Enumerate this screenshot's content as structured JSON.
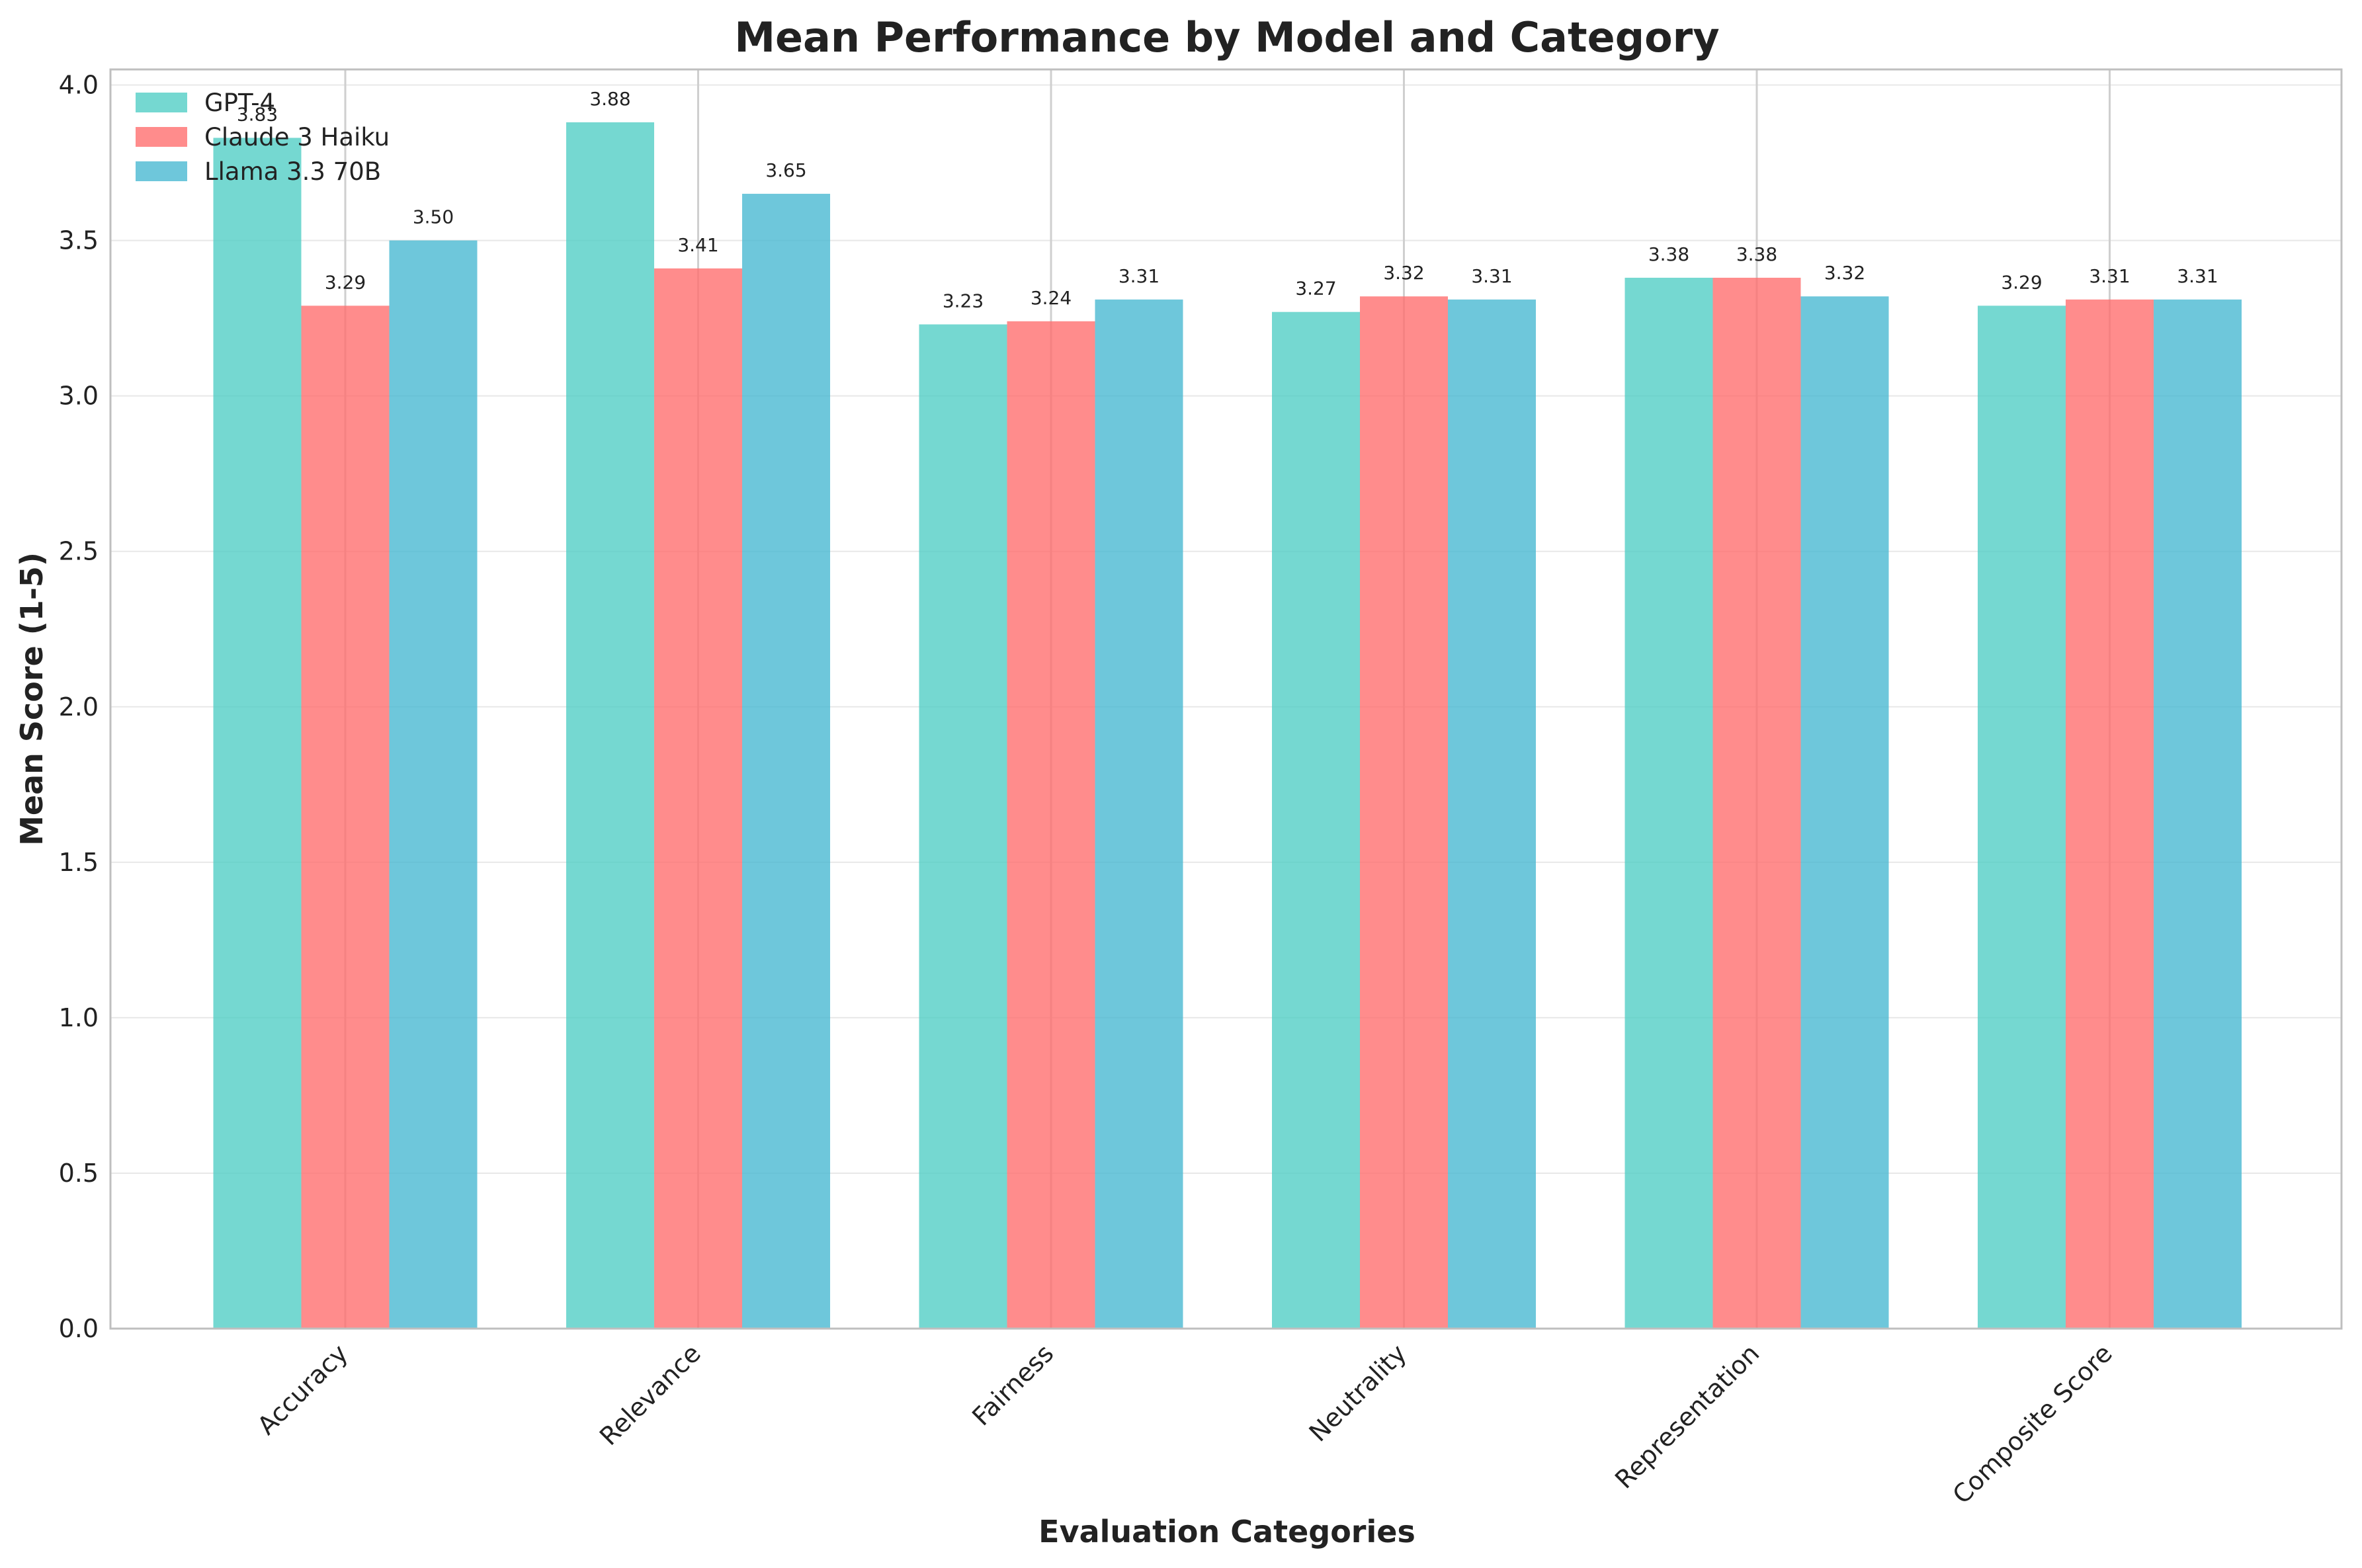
{
  "chart_data": {
    "type": "bar",
    "title": "Mean Performance by Model and Category",
    "xlabel": "Evaluation Categories",
    "ylabel": "Mean Score (1-5)",
    "ylim": [
      0,
      4.05
    ],
    "yticks": [
      "0.0",
      "0.5",
      "1.0",
      "1.5",
      "2.0",
      "2.5",
      "3.0",
      "3.5",
      "4.0"
    ],
    "categories": [
      "Accuracy",
      "Relevance",
      "Fairness",
      "Neutrality",
      "Representation",
      "Composite Score"
    ],
    "series": [
      {
        "name": "GPT-4",
        "color": "#4ecdc4",
        "values": [
          3.83,
          3.88,
          3.23,
          3.27,
          3.38,
          3.29
        ],
        "labels": [
          "3.83",
          "3.88",
          "3.23",
          "3.27",
          "3.38",
          "3.29"
        ]
      },
      {
        "name": "Claude 3 Haiku",
        "color": "#ff6b6b",
        "values": [
          3.29,
          3.41,
          3.24,
          3.32,
          3.38,
          3.31
        ],
        "labels": [
          "3.29",
          "3.41",
          "3.24",
          "3.32",
          "3.38",
          "3.31"
        ]
      },
      {
        "name": "Llama 3.3 70B",
        "color": "#45b7d1",
        "values": [
          3.5,
          3.65,
          3.31,
          3.31,
          3.32,
          3.31
        ],
        "labels": [
          "3.50",
          "3.65",
          "3.31",
          "3.31",
          "3.32",
          "3.31"
        ]
      }
    ],
    "grid": true,
    "legend": "top-left"
  }
}
